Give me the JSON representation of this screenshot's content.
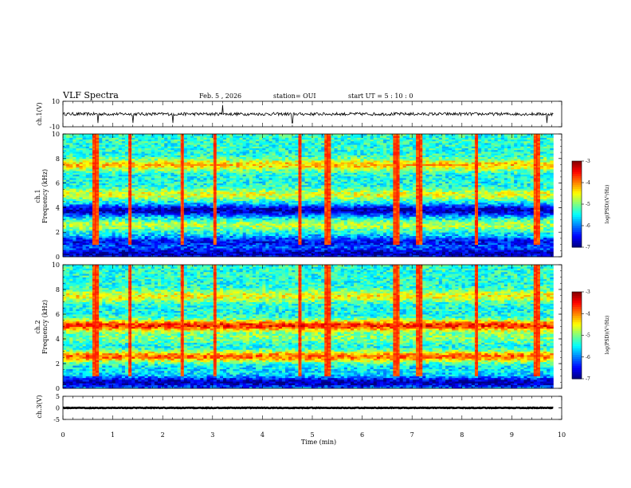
{
  "header": {
    "title": "VLF Spectra",
    "date": "Feb. 5 , 2026",
    "station": "station= OUI",
    "start": "start UT = 5 : 10 : 0"
  },
  "chart_data": {
    "type": "heatmap",
    "xlabel": "Time (min)",
    "xlim": [
      0,
      10
    ],
    "xticks": [
      0,
      1,
      2,
      3,
      4,
      5,
      6,
      7,
      8,
      9,
      10
    ],
    "data_end_min": 9.83,
    "panels": [
      {
        "kind": "line",
        "ylabel": "ch.1(V)",
        "ylim": [
          -10,
          10
        ],
        "yticks": [
          10,
          -10
        ],
        "baseline": 0,
        "noise_amplitude": 1.2,
        "spikes_min": [
          0.7,
          1.4,
          2.2,
          3.2,
          4.6,
          9.7
        ]
      },
      {
        "kind": "spectrogram",
        "ylabel_channel": "ch.1",
        "ylabel": "Frequency (kHz)",
        "ylim": [
          0,
          10
        ],
        "yticks": [
          0,
          2,
          4,
          6,
          8,
          10
        ],
        "level_range": [
          -7,
          -3
        ],
        "colorbar_label": "log(PSD)(V²/Hz)",
        "colorbar_ticks": [
          -3,
          -4,
          -5,
          -6,
          -7
        ],
        "bands_khz": [
          {
            "f": 0.3,
            "level": -6.8
          },
          {
            "f": 1.2,
            "level": -6.5
          },
          {
            "f": 2.6,
            "level": -4.8
          },
          {
            "f": 3.8,
            "level": -6.8
          },
          {
            "f": 5.1,
            "level": -4.6
          },
          {
            "f": 7.5,
            "level": -4.3
          }
        ],
        "bursts_min": [
          0.65,
          1.35,
          2.4,
          3.05,
          4.75,
          5.3,
          6.7,
          7.15,
          8.3,
          9.5
        ]
      },
      {
        "kind": "spectrogram",
        "ylabel_channel": "ch.2",
        "ylabel": "Frequency (kHz)",
        "ylim": [
          0,
          10
        ],
        "yticks": [
          0,
          2,
          4,
          6,
          8,
          10
        ],
        "level_range": [
          -7,
          -3
        ],
        "colorbar_label": "log(PSD)(V²/Hz)",
        "colorbar_ticks": [
          -3,
          -4,
          -5,
          -6,
          -7
        ],
        "bands_khz": [
          {
            "f": 0.5,
            "level": -6.8
          },
          {
            "f": 1.6,
            "level": -5.6
          },
          {
            "f": 2.6,
            "level": -3.9
          },
          {
            "f": 4.1,
            "level": -5.0
          },
          {
            "f": 5.1,
            "level": -3.6
          },
          {
            "f": 7.5,
            "level": -4.5
          }
        ],
        "bursts_min": [
          0.65,
          1.35,
          2.4,
          3.05,
          4.75,
          5.3,
          6.7,
          7.15,
          8.3,
          9.5
        ]
      },
      {
        "kind": "line",
        "ylabel": "ch.3(V)",
        "ylim": [
          -5,
          5
        ],
        "yticks": [
          5,
          0,
          -5
        ],
        "baseline": 0,
        "noise_amplitude": 0.15,
        "spikes_min": []
      }
    ]
  }
}
